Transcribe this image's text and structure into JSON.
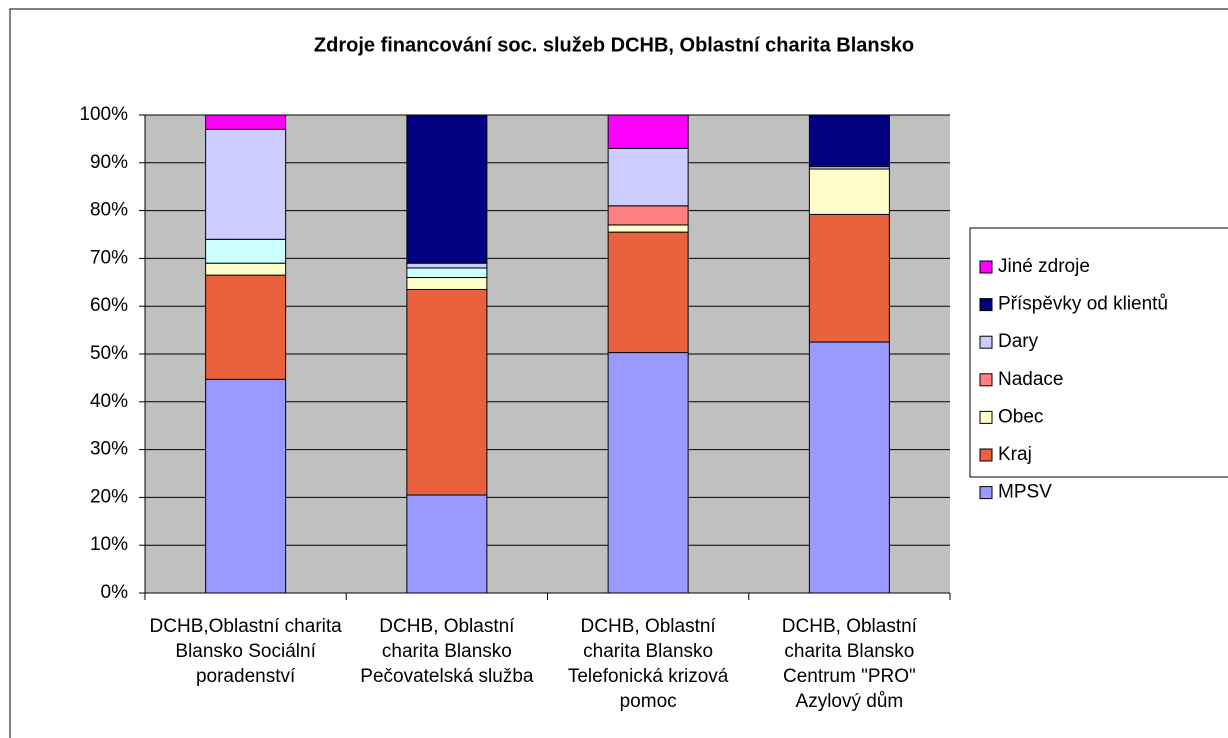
{
  "chart_data": {
    "type": "stacked_bar",
    "title": "Zdroje financování soc. služeb DCHB, Oblastní charita Blansko",
    "categories": [
      "DCHB,Oblastní charita Blansko Sociální poradenství",
      "DCHB, Oblastní charita Blansko Pečovatelská služba",
      "DCHB, Oblastní charita Blansko Telefonická krizová pomoc",
      "DCHB, Oblastní charita Blansko Centrum \"PRO\" Azylový dům"
    ],
    "series": [
      {
        "name": "MPSV",
        "color": "#9999ff",
        "values": [
          44.7,
          20.5,
          50.3,
          52.5
        ]
      },
      {
        "name": "Kraj",
        "color": "#e9613d",
        "values": [
          21.8,
          43,
          25.2,
          26.7
        ]
      },
      {
        "name": "Obec",
        "color": "#ffffcc",
        "values": [
          2.5,
          2.5,
          1.5,
          9.5
        ]
      },
      {
        "name": null,
        "color": "#ccffff",
        "values": [
          5,
          2,
          0,
          0
        ]
      },
      {
        "name": "Nadace",
        "color": "#ff8080",
        "values": [
          0,
          0,
          4,
          0
        ]
      },
      {
        "name": "Dary",
        "color": "#ccccff",
        "values": [
          23,
          1,
          12,
          0.5
        ]
      },
      {
        "name": "Příspěvky od klientů",
        "color": "#000080",
        "values": [
          0,
          31,
          0,
          10.8
        ]
      },
      {
        "name": "Jiné zdroje",
        "color": "#ff00ff",
        "values": [
          3,
          0,
          7,
          0
        ]
      }
    ],
    "ylim": [
      0,
      100
    ],
    "yticks": [
      {
        "value": 0,
        "label": "0%"
      },
      {
        "value": 10,
        "label": "10%"
      },
      {
        "value": 20,
        "label": "20%"
      },
      {
        "value": 30,
        "label": "30%"
      },
      {
        "value": 40,
        "label": "40%"
      },
      {
        "value": 50,
        "label": "50%"
      },
      {
        "value": 60,
        "label": "60%"
      },
      {
        "value": 70,
        "label": "70%"
      },
      {
        "value": 80,
        "label": "80%"
      },
      {
        "value": 90,
        "label": "90%"
      },
      {
        "value": 100,
        "label": "100%"
      }
    ],
    "grid": true,
    "legend": "right"
  }
}
